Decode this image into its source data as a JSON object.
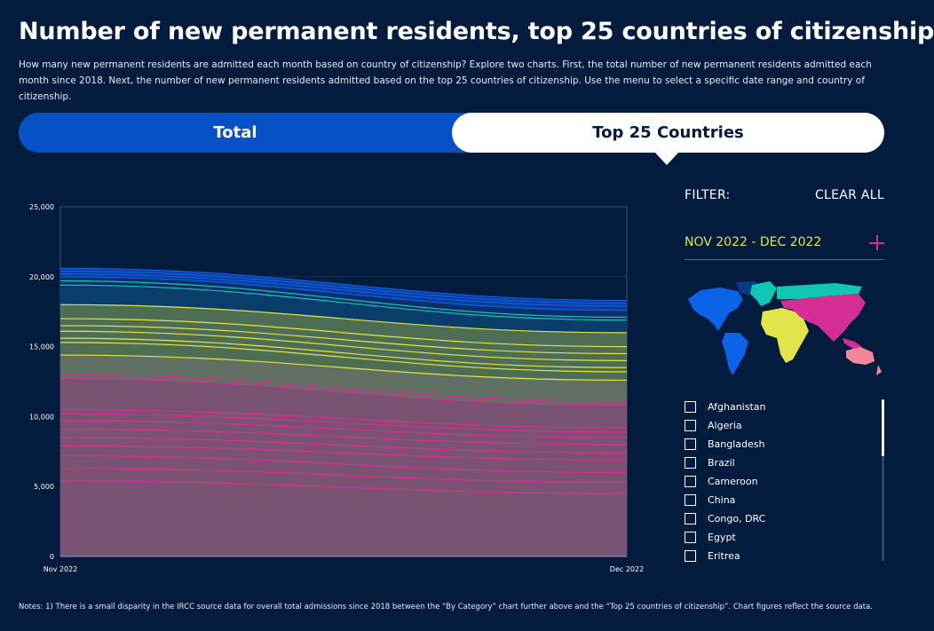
{
  "header": {
    "title": "Number of new permanent residents, top 25 countries of citizenship",
    "subtitle": "How many new permanent residents are admitted each month based on country of citizenship? Explore two charts. First, the total number of new permanent residents admitted each month since 2018. Next, the number of new permanent residents admitted based on the top 25 countries of citizenship. Use the menu to select a specific date range and country of citizenship."
  },
  "tabs": {
    "total": "Total",
    "top25": "Top 25 Countries",
    "active": "Top 25 Countries"
  },
  "filter": {
    "label": "FILTER:",
    "clear_all": "CLEAR ALL",
    "date_range": "NOV 2022 - DEC 2022",
    "countries": [
      "Afghanistan",
      "Algeria",
      "Bangladesh",
      "Brazil",
      "Cameroon",
      "China",
      "Congo, DRC",
      "Egypt",
      "Eritrea"
    ]
  },
  "map_colors": {
    "north_america": "#0b63e8",
    "greenland": "#0b3a8a",
    "south_america": "#0b63e8",
    "europe": "#10c7b4",
    "africa": "#e2e54a",
    "asia": "#d42e94",
    "oceania": "#f4869a"
  },
  "notes": "Notes: 1) There is a small disparity in the IRCC source data for overall total admissions since 2018 between the “By Category” chart further above and the “Top 25 countries of citizenship”. Chart figures reflect the source data.",
  "chart_data": {
    "type": "area",
    "stacked": true,
    "x": [
      "Nov 2022",
      "Dec 2022"
    ],
    "ylim": [
      0,
      25000
    ],
    "yticks": [
      0,
      5000,
      10000,
      15000,
      20000,
      25000
    ],
    "ytick_labels": [
      "0",
      "5,000",
      "10,000",
      "15,000",
      "20,000",
      "25,000"
    ],
    "grid": true,
    "series_boundaries": [
      {
        "values": [
          5400,
          4500
        ],
        "color": "#d42e94"
      },
      {
        "values": [
          6300,
          5300
        ],
        "color": "#d42e94"
      },
      {
        "values": [
          7200,
          6000
        ],
        "color": "#d42e94"
      },
      {
        "values": [
          7900,
          6900
        ],
        "color": "#d42e94"
      },
      {
        "values": [
          8500,
          7400
        ],
        "color": "#d42e94"
      },
      {
        "values": [
          9100,
          8000
        ],
        "color": "#d42e94"
      },
      {
        "values": [
          9700,
          8500
        ],
        "color": "#d42e94"
      },
      {
        "values": [
          10200,
          8900
        ],
        "color": "#d42e94"
      },
      {
        "values": [
          10500,
          9200
        ],
        "color": "#d42e94"
      },
      {
        "values": [
          12700,
          10800
        ],
        "color": "#d42e94"
      },
      {
        "values": [
          13000,
          11100
        ],
        "color": "#d42e94"
      },
      {
        "values": [
          14400,
          12600
        ],
        "color": "#e2e54a"
      },
      {
        "values": [
          15300,
          13200
        ],
        "color": "#e2e54a"
      },
      {
        "values": [
          15600,
          13500
        ],
        "color": "#e2e54a"
      },
      {
        "values": [
          16100,
          14000
        ],
        "color": "#e2e54a"
      },
      {
        "values": [
          16500,
          14500
        ],
        "color": "#e2e54a"
      },
      {
        "values": [
          17000,
          15000
        ],
        "color": "#e2e54a"
      },
      {
        "values": [
          18000,
          16000
        ],
        "color": "#e2e54a"
      },
      {
        "values": [
          19400,
          16900
        ],
        "color": "#10c7b4"
      },
      {
        "values": [
          19700,
          17100
        ],
        "color": "#10c7b4"
      },
      {
        "values": [
          20000,
          17600
        ],
        "color": "#0b63e8"
      },
      {
        "values": [
          20200,
          17900
        ],
        "color": "#0b63e8"
      },
      {
        "values": [
          20400,
          18100
        ],
        "color": "#0b63e8"
      },
      {
        "values": [
          20600,
          18300
        ],
        "color": "#0b63e8"
      }
    ],
    "region_fills": [
      {
        "from": 0,
        "to": 9,
        "color": "#7a5372"
      },
      {
        "from": 9,
        "to": 11,
        "color": "#607062"
      },
      {
        "from": 11,
        "to": 17,
        "color": "#4e6e53"
      },
      {
        "from": 17,
        "to": 18,
        "color": "#093e6b"
      },
      {
        "from": 18,
        "to": 20,
        "color": "#09306a"
      },
      {
        "from": 20,
        "to": 23,
        "color": "#0a3a9a"
      }
    ]
  }
}
